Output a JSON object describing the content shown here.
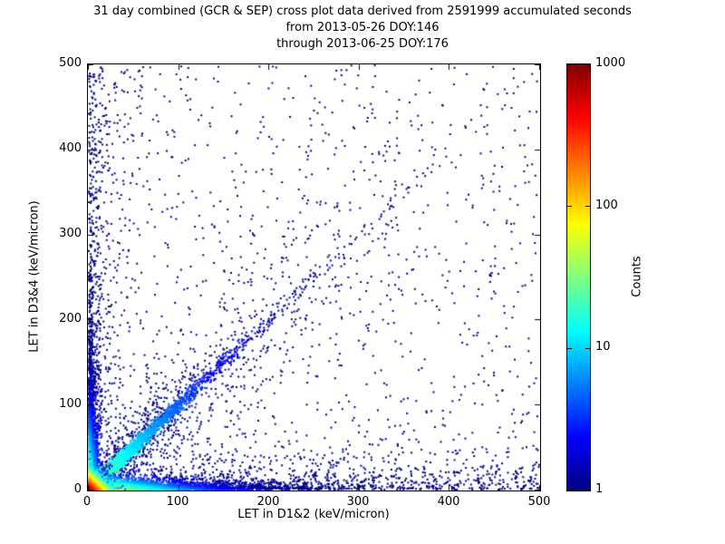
{
  "chart_data": {
    "type": "scatter",
    "title": "31 day combined (GCR & SEP) cross plot data derived from 2591999 accumulated seconds",
    "subtitles": [
      "from 2013-05-26 DOY:146",
      "through 2013-06-25 DOY:176"
    ],
    "xlabel": "LET in D1&2 (keV/micron)",
    "ylabel": "LET in D3&4 (keV/micron)",
    "xlim": [
      0,
      500
    ],
    "ylim": [
      0,
      500
    ],
    "xticks": [
      0,
      100,
      200,
      300,
      400,
      500
    ],
    "yticks": [
      0,
      100,
      200,
      300,
      400,
      500
    ],
    "grid": false,
    "background_color": "#ffffff",
    "point_color_low": "#00007f",
    "colorbar": {
      "label": "Counts",
      "scale": "log",
      "range": [
        1,
        1000
      ],
      "ticks": [
        1000,
        100,
        10,
        1
      ],
      "colormap": "jet"
    },
    "distribution_summary": "Dense hot spot (counts up to ~1000, red/yellow) at the origin; bright cyan-green ridges of high counts hugging both axes near zero; a cyan-to-blue diagonal ridge along y=x fading by ~150 keV/micron; sparse single-count dark blue points scattered over the full 0-500 x 0-500 range with extra density near the axes and diagonal.",
    "scatter_components": [
      {
        "name": "uniform-background",
        "type": "uniform",
        "n": 900,
        "count": 1
      },
      {
        "name": "lower-band-halo",
        "type": "halo_x",
        "n": 800,
        "y_scale": 22,
        "count": 1
      },
      {
        "name": "left-band-halo",
        "type": "halo_y",
        "n": 550,
        "x_scale": 18,
        "count": 1
      },
      {
        "name": "diagonal-halo",
        "type": "diag_halo",
        "n": 1000,
        "d_scale": 110,
        "spread_frac": 0.22,
        "count": 1
      },
      {
        "name": "diagonal-ridge",
        "type": "diag",
        "n": 2400,
        "d_scale": 55,
        "spread": 3.5,
        "count_peak": 30,
        "count_decay": 45
      },
      {
        "name": "x-axis-ridge",
        "type": "ridge_x",
        "n": 3600,
        "x_scale": 75,
        "y_scale": 4,
        "count_peak": 120,
        "decay_x": 35,
        "decay_y": 6
      },
      {
        "name": "y-axis-ridge",
        "type": "ridge_y",
        "n": 2300,
        "y_scale": 65,
        "x_scale": 3.5,
        "count_peak": 60,
        "decay_y": 30,
        "decay_x": 5
      },
      {
        "name": "origin-hotspot",
        "type": "origin",
        "n": 3200,
        "scale": 5,
        "count_peak": 900,
        "decay": 7
      }
    ]
  }
}
